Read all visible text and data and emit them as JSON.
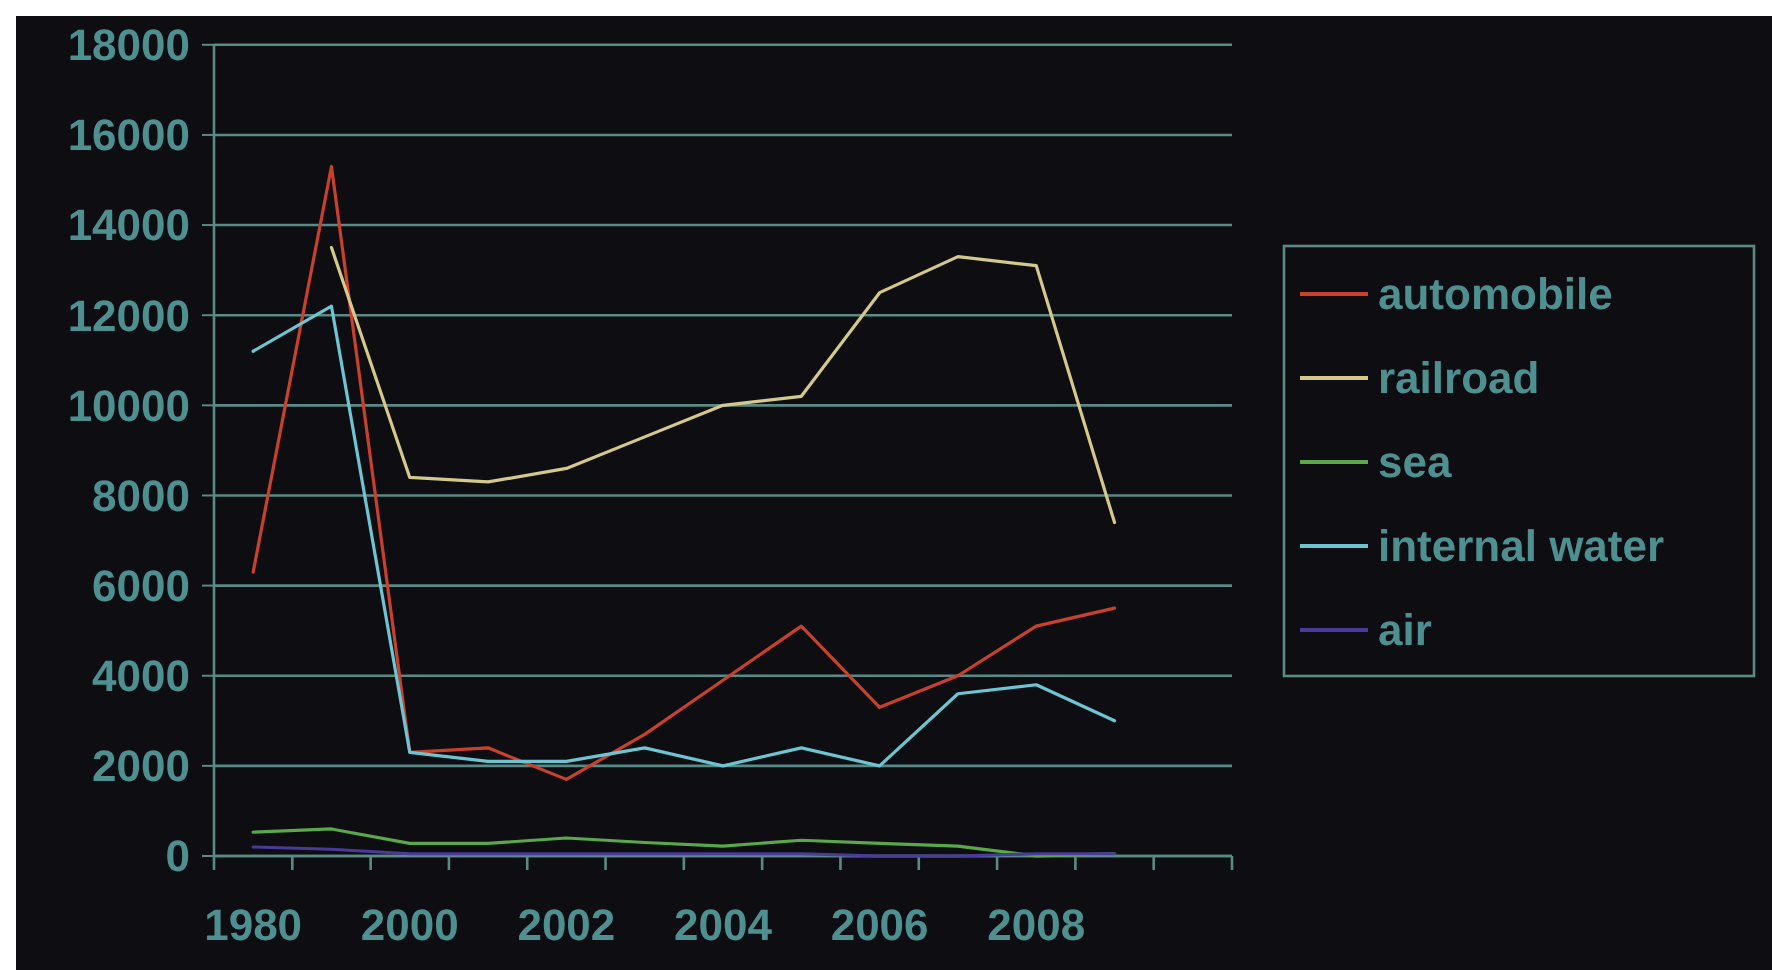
{
  "chart_data": {
    "type": "line",
    "categories": [
      "1980",
      null,
      "2000",
      null,
      "2002",
      null,
      "2004",
      null,
      "2006",
      null,
      "2008",
      null,
      null
    ],
    "series": [
      {
        "name": "automobile",
        "color": "#c8412d",
        "values": [
          6300,
          15300,
          2300,
          2400,
          1700,
          2700,
          3900,
          5100,
          3300,
          4000,
          5100,
          5500,
          null
        ]
      },
      {
        "name": "railroad",
        "color": "#d4c98a",
        "values": [
          null,
          13500,
          8400,
          8300,
          8600,
          9300,
          10000,
          10200,
          12500,
          13300,
          13100,
          7400,
          null
        ]
      },
      {
        "name": "sea",
        "color": "#5aa84a",
        "values": [
          530,
          600,
          280,
          280,
          400,
          300,
          220,
          350,
          280,
          220,
          0,
          50,
          null
        ]
      },
      {
        "name": "internal water",
        "color": "#6cc5d0",
        "values": [
          11200,
          12200,
          2300,
          2100,
          2100,
          2400,
          2000,
          2400,
          2000,
          3600,
          3800,
          3000,
          null
        ]
      },
      {
        "name": "air",
        "color": "#4a3a9a",
        "values": [
          200,
          150,
          50,
          50,
          50,
          50,
          50,
          50,
          0,
          0,
          50,
          50,
          null
        ]
      }
    ],
    "ylim": [
      0,
      18000
    ],
    "yticks": [
      0,
      2000,
      4000,
      6000,
      8000,
      10000,
      12000,
      14000,
      16000,
      18000
    ],
    "grid": "y",
    "legend": "right",
    "marker": "none",
    "line_style": "solid"
  }
}
